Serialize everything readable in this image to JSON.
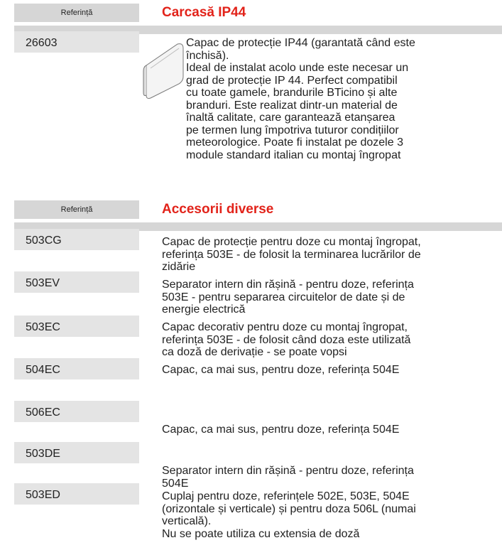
{
  "sections": [
    {
      "header_label": "Referință",
      "title": "Carcasă IP44",
      "rows": [
        {
          "code": "26603",
          "lines": [
            "Capac de protecție IP44 (garantată când este",
            "închisă).",
            "Ideal de instalat acolo unde este necesar un",
            "grad de protecție IP 44. Perfect compatibil",
            "cu toate gamele, brandurile BTicino și alte",
            "branduri. Este realizat dintr-un material de",
            "înaltă calitate, care garantează etanșarea",
            "pe termen lung împotriva tuturor condițiilor",
            "meteorologice. Poate fi instalat pe dozele 3",
            "module standard italian cu montaj îngropat"
          ]
        }
      ]
    },
    {
      "header_label": "Referință",
      "title": "Accesorii diverse",
      "rows": [
        {
          "code": "503CG",
          "lines": [
            "Capac de protecție pentru doze cu montaj îngropat,",
            "referința 503E - de folosit la terminarea lucrărilor de",
            "zidărie"
          ]
        },
        {
          "code": "503EV",
          "lines": [
            "Separator intern din rășină - pentru doze, referința",
            "503E - pentru separarea circuitelor de date și de",
            "energie electrică"
          ]
        },
        {
          "code": "503EC",
          "lines": [
            "Capac decorativ pentru doze cu montaj îngropat,",
            "referința 503E - de folosit când doza este utilizată",
            "ca doză de derivație - se poate vopsi"
          ]
        },
        {
          "code": "504EC",
          "lines": [
            "Capac, ca mai sus, pentru doze, referința 504E"
          ]
        },
        {
          "code": "506EC",
          "lines": [
            "Capac, ca mai sus, pentru doze, referința 504E"
          ]
        },
        {
          "code": "503DE",
          "lines": [
            "Separator intern din rășină - pentru doze, referința",
            "504E"
          ]
        },
        {
          "code": "503ED",
          "lines": [
            "Cuplaj pentru doze, referințele 502E, 503E, 504E",
            "(orizontale și verticale) și pentru doza 506L (numai",
            "verticală).",
            "Nu se poate utiliza cu extensia de doză"
          ]
        }
      ]
    }
  ]
}
